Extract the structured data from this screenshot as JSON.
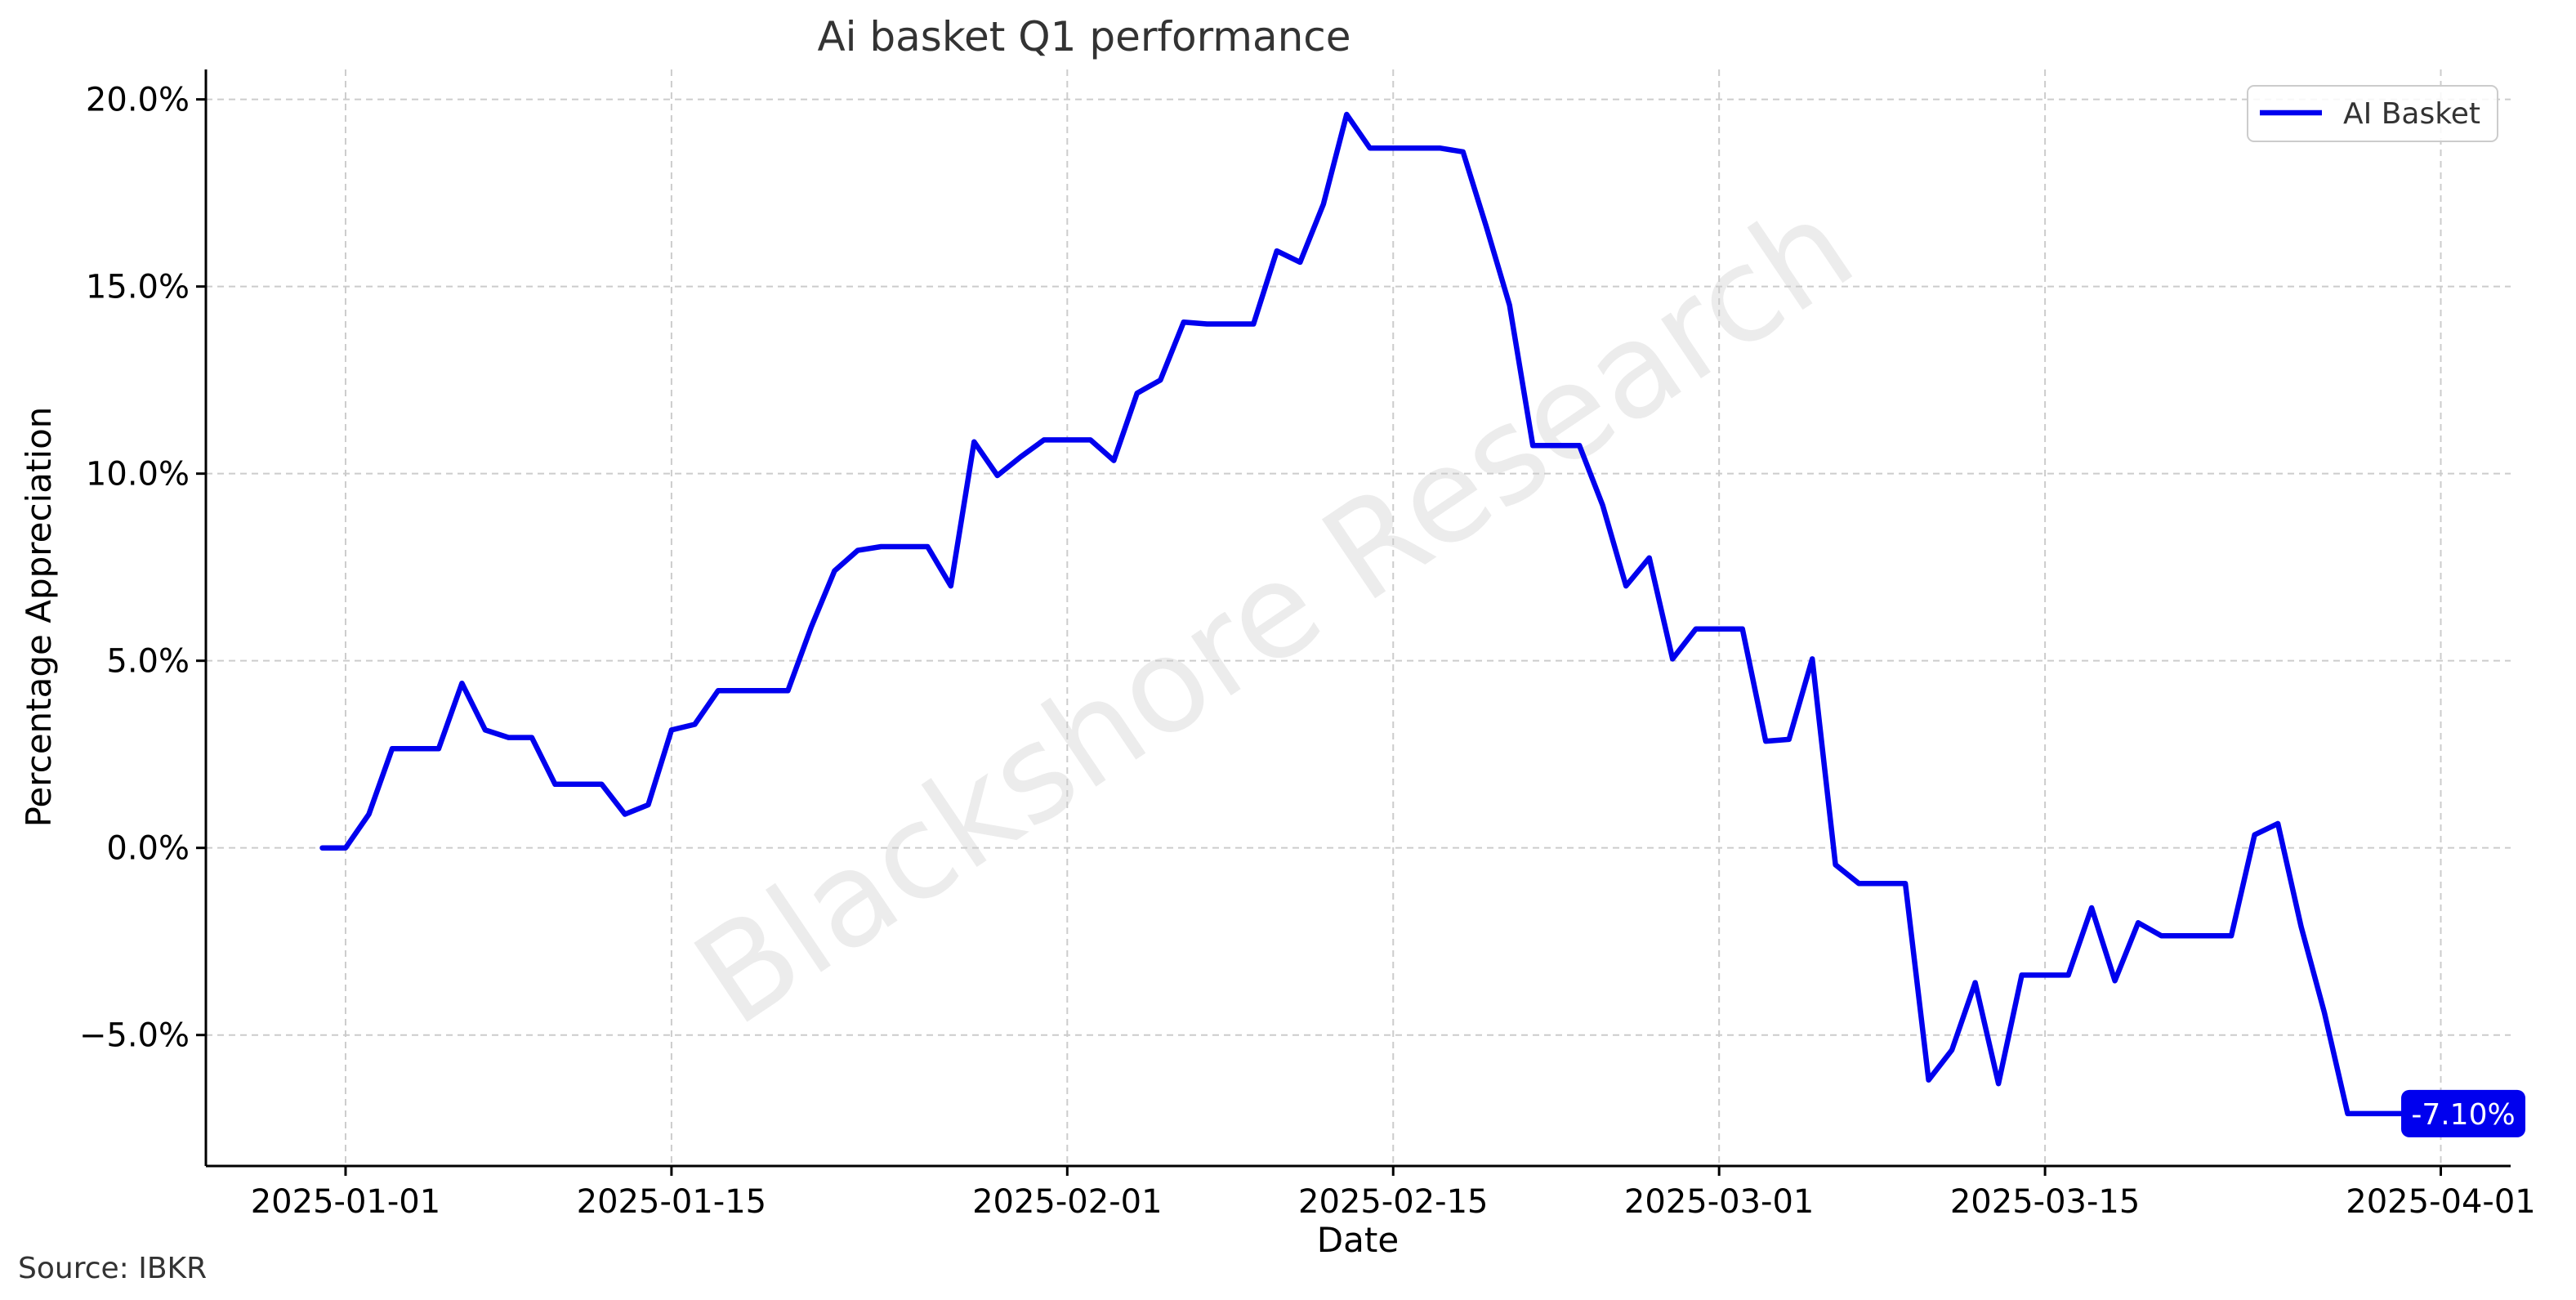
{
  "chart_data": {
    "type": "line",
    "title": "Ai basket Q1 performance",
    "xlabel": "Date",
    "ylabel": "Percentage Appreciation",
    "source": "Source: IBKR",
    "watermark": "Blackshore Research",
    "xlim": [
      "2024-12-26",
      "2025-04-04"
    ],
    "ylim": [
      -8.5,
      20.8
    ],
    "x_ticks": [
      "2025-01-01",
      "2025-01-15",
      "2025-02-01",
      "2025-02-15",
      "2025-03-01",
      "2025-03-15",
      "2025-04-01"
    ],
    "y_ticks": [
      -5,
      0,
      5,
      10,
      15,
      20
    ],
    "y_tick_labels": [
      "−5.0%",
      "0.0%",
      "5.0%",
      "10.0%",
      "15.0%",
      "20.0%"
    ],
    "grid": true,
    "legend_position": "top-right",
    "end_label": "-7.10%",
    "series": [
      {
        "name": "AI Basket",
        "color": "#0000ee",
        "x": [
          "2024-12-31",
          "2025-01-01",
          "2025-01-02",
          "2025-01-03",
          "2025-01-04",
          "2025-01-05",
          "2025-01-06",
          "2025-01-07",
          "2025-01-08",
          "2025-01-09",
          "2025-01-10",
          "2025-01-11",
          "2025-01-12",
          "2025-01-13",
          "2025-01-14",
          "2025-01-15",
          "2025-01-16",
          "2025-01-17",
          "2025-01-18",
          "2025-01-19",
          "2025-01-20",
          "2025-01-21",
          "2025-01-22",
          "2025-01-23",
          "2025-01-24",
          "2025-01-25",
          "2025-01-26",
          "2025-01-27",
          "2025-01-28",
          "2025-01-29",
          "2025-01-30",
          "2025-01-31",
          "2025-02-01",
          "2025-02-02",
          "2025-02-03",
          "2025-02-04",
          "2025-02-05",
          "2025-02-06",
          "2025-02-07",
          "2025-02-08",
          "2025-02-09",
          "2025-02-10",
          "2025-02-11",
          "2025-02-12",
          "2025-02-13",
          "2025-02-14",
          "2025-02-15",
          "2025-02-16",
          "2025-02-17",
          "2025-02-18",
          "2025-02-19",
          "2025-02-20",
          "2025-02-21",
          "2025-02-22",
          "2025-02-23",
          "2025-02-24",
          "2025-02-25",
          "2025-02-26",
          "2025-02-27",
          "2025-02-28",
          "2025-03-01",
          "2025-03-02",
          "2025-03-03",
          "2025-03-04",
          "2025-03-05",
          "2025-03-06",
          "2025-03-07",
          "2025-03-08",
          "2025-03-09",
          "2025-03-10",
          "2025-03-11",
          "2025-03-12",
          "2025-03-13",
          "2025-03-14",
          "2025-03-15",
          "2025-03-16",
          "2025-03-17",
          "2025-03-18",
          "2025-03-19",
          "2025-03-20",
          "2025-03-21",
          "2025-03-22",
          "2025-03-23",
          "2025-03-24",
          "2025-03-25",
          "2025-03-26",
          "2025-03-27",
          "2025-03-28",
          "2025-03-29",
          "2025-03-30",
          "2025-03-31"
        ],
        "values": [
          0.0,
          0.0,
          0.9,
          2.65,
          2.65,
          2.65,
          4.4,
          3.15,
          2.95,
          2.95,
          1.7,
          1.7,
          1.7,
          0.9,
          1.15,
          3.15,
          3.3,
          4.2,
          4.2,
          4.2,
          4.2,
          5.9,
          7.4,
          7.95,
          8.05,
          8.05,
          8.05,
          7.0,
          10.85,
          9.95,
          10.45,
          10.9,
          10.9,
          10.9,
          10.35,
          12.15,
          12.5,
          14.05,
          14.0,
          14.0,
          14.0,
          15.95,
          15.65,
          17.2,
          19.6,
          18.7,
          18.7,
          18.7,
          18.7,
          18.6,
          16.6,
          14.5,
          10.75,
          10.75,
          10.75,
          9.15,
          7.0,
          7.75,
          5.05,
          5.85,
          5.85,
          5.85,
          2.85,
          2.9,
          5.05,
          -0.45,
          -0.95,
          -0.95,
          -0.95,
          -6.2,
          -5.4,
          -3.6,
          -6.3,
          -3.4,
          -3.4,
          -3.4,
          -1.6,
          -3.55,
          -2.0,
          -2.35,
          -2.35,
          -2.35,
          -2.35,
          0.35,
          0.65,
          -2.1,
          -4.4,
          -7.1,
          -7.1,
          -7.1,
          -7.1
        ]
      }
    ]
  }
}
